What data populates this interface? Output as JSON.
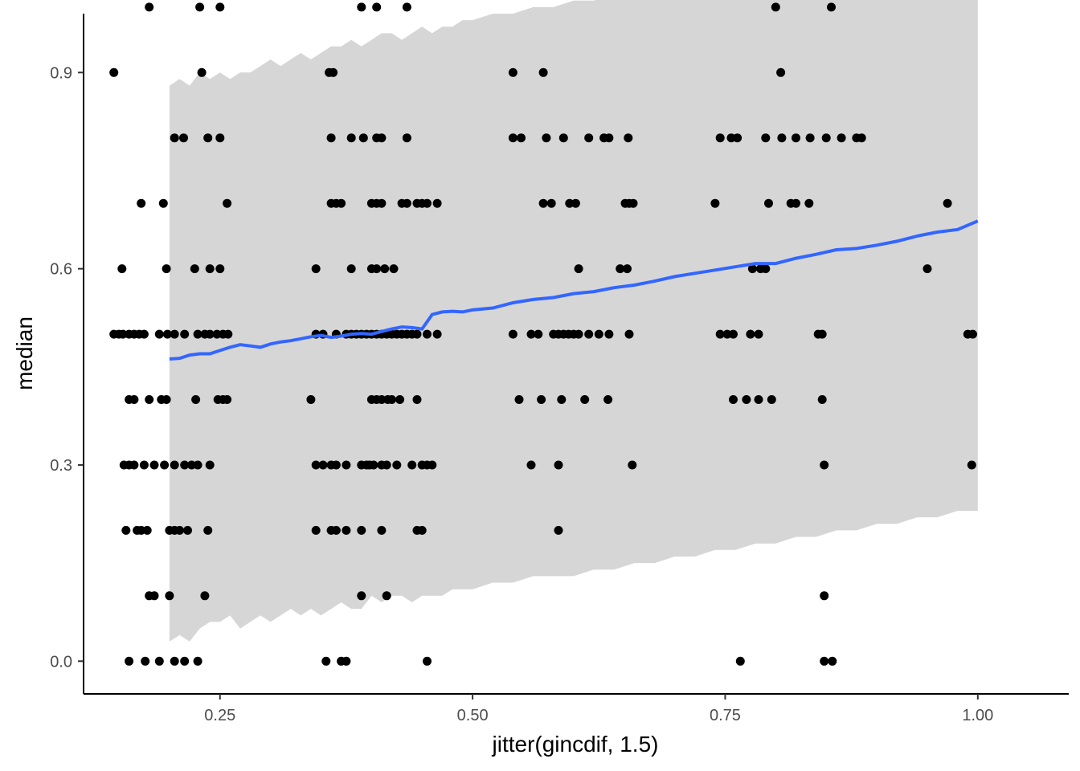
{
  "chart_data": {
    "type": "scatter",
    "xlabel": "jitter(gincdif, 1.5)",
    "ylabel": "median",
    "xlim": [
      0.115,
      1.09
    ],
    "ylim": [
      -0.05,
      0.99
    ],
    "x_ticks": [
      0.25,
      0.5,
      0.75,
      1.0
    ],
    "x_tick_labels": [
      "0.25",
      "0.50",
      "0.75",
      "1.00"
    ],
    "y_ticks": [
      0.0,
      0.3,
      0.6,
      0.9
    ],
    "y_tick_labels": [
      "0.0",
      "0.3",
      "0.6",
      "0.9"
    ],
    "grid": false,
    "colors": {
      "points": "#000000",
      "smooth_line": "#3366ff",
      "ribbon": "#d6d6d6",
      "axis": "#000000"
    },
    "points": [
      [
        0.18,
        1.0
      ],
      [
        0.23,
        1.0
      ],
      [
        0.25,
        1.0
      ],
      [
        0.39,
        1.0
      ],
      [
        0.405,
        1.0
      ],
      [
        0.435,
        1.0
      ],
      [
        0.8,
        1.0
      ],
      [
        0.855,
        1.0
      ],
      [
        0.145,
        0.9
      ],
      [
        0.232,
        0.9
      ],
      [
        0.358,
        0.9
      ],
      [
        0.362,
        0.9
      ],
      [
        0.54,
        0.9
      ],
      [
        0.57,
        0.9
      ],
      [
        0.805,
        0.9
      ],
      [
        0.205,
        0.8
      ],
      [
        0.214,
        0.8
      ],
      [
        0.238,
        0.8
      ],
      [
        0.25,
        0.8
      ],
      [
        0.36,
        0.8
      ],
      [
        0.38,
        0.8
      ],
      [
        0.392,
        0.8
      ],
      [
        0.405,
        0.8
      ],
      [
        0.41,
        0.8
      ],
      [
        0.435,
        0.8
      ],
      [
        0.54,
        0.8
      ],
      [
        0.548,
        0.8
      ],
      [
        0.573,
        0.8
      ],
      [
        0.59,
        0.8
      ],
      [
        0.615,
        0.8
      ],
      [
        0.63,
        0.8
      ],
      [
        0.635,
        0.8
      ],
      [
        0.654,
        0.8
      ],
      [
        0.745,
        0.8
      ],
      [
        0.756,
        0.8
      ],
      [
        0.762,
        0.8
      ],
      [
        0.79,
        0.8
      ],
      [
        0.806,
        0.8
      ],
      [
        0.82,
        0.8
      ],
      [
        0.834,
        0.8
      ],
      [
        0.85,
        0.8
      ],
      [
        0.865,
        0.8
      ],
      [
        0.88,
        0.8
      ],
      [
        0.885,
        0.8
      ],
      [
        0.172,
        0.7
      ],
      [
        0.194,
        0.7
      ],
      [
        0.257,
        0.7
      ],
      [
        0.36,
        0.7
      ],
      [
        0.365,
        0.7
      ],
      [
        0.37,
        0.7
      ],
      [
        0.4,
        0.7
      ],
      [
        0.405,
        0.7
      ],
      [
        0.41,
        0.7
      ],
      [
        0.43,
        0.7
      ],
      [
        0.435,
        0.7
      ],
      [
        0.445,
        0.7
      ],
      [
        0.45,
        0.7
      ],
      [
        0.455,
        0.7
      ],
      [
        0.465,
        0.7
      ],
      [
        0.57,
        0.7
      ],
      [
        0.578,
        0.7
      ],
      [
        0.596,
        0.7
      ],
      [
        0.602,
        0.7
      ],
      [
        0.651,
        0.7
      ],
      [
        0.655,
        0.7
      ],
      [
        0.659,
        0.7
      ],
      [
        0.74,
        0.7
      ],
      [
        0.793,
        0.7
      ],
      [
        0.815,
        0.7
      ],
      [
        0.82,
        0.7
      ],
      [
        0.833,
        0.7
      ],
      [
        0.97,
        0.7
      ],
      [
        0.153,
        0.6
      ],
      [
        0.197,
        0.6
      ],
      [
        0.225,
        0.6
      ],
      [
        0.24,
        0.6
      ],
      [
        0.25,
        0.6
      ],
      [
        0.345,
        0.6
      ],
      [
        0.38,
        0.6
      ],
      [
        0.4,
        0.6
      ],
      [
        0.405,
        0.6
      ],
      [
        0.413,
        0.6
      ],
      [
        0.422,
        0.6
      ],
      [
        0.605,
        0.6
      ],
      [
        0.646,
        0.6
      ],
      [
        0.653,
        0.6
      ],
      [
        0.777,
        0.6
      ],
      [
        0.785,
        0.6
      ],
      [
        0.79,
        0.6
      ],
      [
        0.95,
        0.6
      ],
      [
        0.145,
        0.5
      ],
      [
        0.15,
        0.5
      ],
      [
        0.154,
        0.5
      ],
      [
        0.16,
        0.5
      ],
      [
        0.165,
        0.5
      ],
      [
        0.17,
        0.5
      ],
      [
        0.175,
        0.5
      ],
      [
        0.19,
        0.5
      ],
      [
        0.198,
        0.5
      ],
      [
        0.205,
        0.5
      ],
      [
        0.215,
        0.5
      ],
      [
        0.228,
        0.5
      ],
      [
        0.235,
        0.5
      ],
      [
        0.24,
        0.5
      ],
      [
        0.247,
        0.5
      ],
      [
        0.253,
        0.5
      ],
      [
        0.258,
        0.5
      ],
      [
        0.345,
        0.5
      ],
      [
        0.352,
        0.5
      ],
      [
        0.365,
        0.5
      ],
      [
        0.375,
        0.5
      ],
      [
        0.38,
        0.5
      ],
      [
        0.385,
        0.5
      ],
      [
        0.39,
        0.5
      ],
      [
        0.395,
        0.5
      ],
      [
        0.4,
        0.5
      ],
      [
        0.405,
        0.5
      ],
      [
        0.41,
        0.5
      ],
      [
        0.415,
        0.5
      ],
      [
        0.42,
        0.5
      ],
      [
        0.425,
        0.5
      ],
      [
        0.43,
        0.5
      ],
      [
        0.435,
        0.5
      ],
      [
        0.44,
        0.5
      ],
      [
        0.445,
        0.5
      ],
      [
        0.455,
        0.5
      ],
      [
        0.465,
        0.5
      ],
      [
        0.54,
        0.5
      ],
      [
        0.558,
        0.5
      ],
      [
        0.565,
        0.5
      ],
      [
        0.58,
        0.5
      ],
      [
        0.585,
        0.5
      ],
      [
        0.59,
        0.5
      ],
      [
        0.595,
        0.5
      ],
      [
        0.6,
        0.5
      ],
      [
        0.605,
        0.5
      ],
      [
        0.615,
        0.5
      ],
      [
        0.625,
        0.5
      ],
      [
        0.635,
        0.5
      ],
      [
        0.655,
        0.5
      ],
      [
        0.745,
        0.5
      ],
      [
        0.752,
        0.5
      ],
      [
        0.758,
        0.5
      ],
      [
        0.775,
        0.5
      ],
      [
        0.783,
        0.5
      ],
      [
        0.842,
        0.5
      ],
      [
        0.846,
        0.5
      ],
      [
        0.99,
        0.5
      ],
      [
        0.995,
        0.5
      ],
      [
        0.16,
        0.4
      ],
      [
        0.165,
        0.4
      ],
      [
        0.18,
        0.4
      ],
      [
        0.192,
        0.4
      ],
      [
        0.197,
        0.4
      ],
      [
        0.226,
        0.4
      ],
      [
        0.248,
        0.4
      ],
      [
        0.253,
        0.4
      ],
      [
        0.257,
        0.4
      ],
      [
        0.34,
        0.4
      ],
      [
        0.4,
        0.4
      ],
      [
        0.405,
        0.4
      ],
      [
        0.41,
        0.4
      ],
      [
        0.416,
        0.4
      ],
      [
        0.42,
        0.4
      ],
      [
        0.428,
        0.4
      ],
      [
        0.445,
        0.4
      ],
      [
        0.546,
        0.4
      ],
      [
        0.568,
        0.4
      ],
      [
        0.588,
        0.4
      ],
      [
        0.611,
        0.4
      ],
      [
        0.634,
        0.4
      ],
      [
        0.758,
        0.4
      ],
      [
        0.771,
        0.4
      ],
      [
        0.783,
        0.4
      ],
      [
        0.796,
        0.4
      ],
      [
        0.846,
        0.4
      ],
      [
        0.155,
        0.3
      ],
      [
        0.16,
        0.3
      ],
      [
        0.165,
        0.3
      ],
      [
        0.175,
        0.3
      ],
      [
        0.185,
        0.3
      ],
      [
        0.195,
        0.3
      ],
      [
        0.205,
        0.3
      ],
      [
        0.215,
        0.3
      ],
      [
        0.222,
        0.3
      ],
      [
        0.228,
        0.3
      ],
      [
        0.24,
        0.3
      ],
      [
        0.345,
        0.3
      ],
      [
        0.352,
        0.3
      ],
      [
        0.36,
        0.3
      ],
      [
        0.365,
        0.3
      ],
      [
        0.375,
        0.3
      ],
      [
        0.39,
        0.3
      ],
      [
        0.395,
        0.3
      ],
      [
        0.398,
        0.3
      ],
      [
        0.402,
        0.3
      ],
      [
        0.41,
        0.3
      ],
      [
        0.415,
        0.3
      ],
      [
        0.425,
        0.3
      ],
      [
        0.44,
        0.3
      ],
      [
        0.45,
        0.3
      ],
      [
        0.455,
        0.3
      ],
      [
        0.46,
        0.3
      ],
      [
        0.558,
        0.3
      ],
      [
        0.585,
        0.3
      ],
      [
        0.658,
        0.3
      ],
      [
        0.848,
        0.3
      ],
      [
        0.994,
        0.3
      ],
      [
        0.157,
        0.2
      ],
      [
        0.168,
        0.2
      ],
      [
        0.172,
        0.2
      ],
      [
        0.178,
        0.2
      ],
      [
        0.2,
        0.2
      ],
      [
        0.205,
        0.2
      ],
      [
        0.21,
        0.2
      ],
      [
        0.218,
        0.2
      ],
      [
        0.238,
        0.2
      ],
      [
        0.345,
        0.2
      ],
      [
        0.36,
        0.2
      ],
      [
        0.365,
        0.2
      ],
      [
        0.375,
        0.2
      ],
      [
        0.39,
        0.2
      ],
      [
        0.41,
        0.2
      ],
      [
        0.445,
        0.2
      ],
      [
        0.45,
        0.2
      ],
      [
        0.585,
        0.2
      ],
      [
        0.18,
        0.1
      ],
      [
        0.185,
        0.1
      ],
      [
        0.2,
        0.1
      ],
      [
        0.235,
        0.1
      ],
      [
        0.39,
        0.1
      ],
      [
        0.415,
        0.1
      ],
      [
        0.848,
        0.1
      ],
      [
        0.16,
        0.0
      ],
      [
        0.176,
        0.0
      ],
      [
        0.19,
        0.0
      ],
      [
        0.205,
        0.0
      ],
      [
        0.215,
        0.0
      ],
      [
        0.228,
        0.0
      ],
      [
        0.355,
        0.0
      ],
      [
        0.37,
        0.0
      ],
      [
        0.375,
        0.0
      ],
      [
        0.455,
        0.0
      ],
      [
        0.765,
        0.0
      ],
      [
        0.848,
        0.0
      ],
      [
        0.856,
        0.0
      ]
    ],
    "smooth": {
      "x": [
        0.2,
        0.21,
        0.22,
        0.23,
        0.24,
        0.25,
        0.26,
        0.27,
        0.28,
        0.29,
        0.3,
        0.31,
        0.32,
        0.33,
        0.34,
        0.35,
        0.36,
        0.37,
        0.38,
        0.39,
        0.4,
        0.41,
        0.42,
        0.43,
        0.44,
        0.45,
        0.46,
        0.47,
        0.48,
        0.49,
        0.5,
        0.52,
        0.54,
        0.56,
        0.58,
        0.6,
        0.62,
        0.64,
        0.66,
        0.68,
        0.7,
        0.72,
        0.74,
        0.76,
        0.78,
        0.8,
        0.82,
        0.84,
        0.86,
        0.88,
        0.9,
        0.92,
        0.94,
        0.96,
        0.98,
        1.0
      ],
      "y": [
        0.462,
        0.463,
        0.468,
        0.47,
        0.47,
        0.475,
        0.48,
        0.484,
        0.482,
        0.48,
        0.485,
        0.488,
        0.49,
        0.493,
        0.496,
        0.498,
        0.495,
        0.497,
        0.5,
        0.501,
        0.5,
        0.504,
        0.508,
        0.511,
        0.51,
        0.508,
        0.53,
        0.534,
        0.535,
        0.534,
        0.537,
        0.54,
        0.548,
        0.553,
        0.556,
        0.562,
        0.565,
        0.571,
        0.575,
        0.581,
        0.588,
        0.593,
        0.598,
        0.603,
        0.608,
        0.608,
        0.616,
        0.622,
        0.629,
        0.631,
        0.636,
        0.642,
        0.65,
        0.656,
        0.66,
        0.673
      ],
      "lower": [
        0.03,
        0.04,
        0.03,
        0.05,
        0.06,
        0.06,
        0.07,
        0.05,
        0.06,
        0.07,
        0.06,
        0.07,
        0.08,
        0.07,
        0.08,
        0.07,
        0.08,
        0.09,
        0.08,
        0.08,
        0.1,
        0.09,
        0.1,
        0.1,
        0.09,
        0.1,
        0.1,
        0.1,
        0.11,
        0.11,
        0.11,
        0.12,
        0.12,
        0.13,
        0.13,
        0.13,
        0.14,
        0.14,
        0.15,
        0.15,
        0.16,
        0.16,
        0.17,
        0.17,
        0.18,
        0.18,
        0.19,
        0.19,
        0.2,
        0.2,
        0.21,
        0.21,
        0.22,
        0.22,
        0.23,
        0.23
      ],
      "upper": [
        0.88,
        0.89,
        0.88,
        0.9,
        0.89,
        0.9,
        0.89,
        0.9,
        0.9,
        0.91,
        0.92,
        0.91,
        0.92,
        0.93,
        0.92,
        0.93,
        0.94,
        0.94,
        0.95,
        0.94,
        0.95,
        0.96,
        0.96,
        0.95,
        0.96,
        0.97,
        0.96,
        0.97,
        0.97,
        0.98,
        0.98,
        0.99,
        0.99,
        1.0,
        1.0,
        1.01,
        1.01,
        1.02,
        1.02,
        1.03,
        1.03,
        1.04,
        1.04,
        1.05,
        1.05,
        1.06,
        1.06,
        1.07,
        1.07,
        1.08,
        1.08,
        1.08,
        1.09,
        1.09,
        1.1,
        1.1
      ]
    }
  }
}
